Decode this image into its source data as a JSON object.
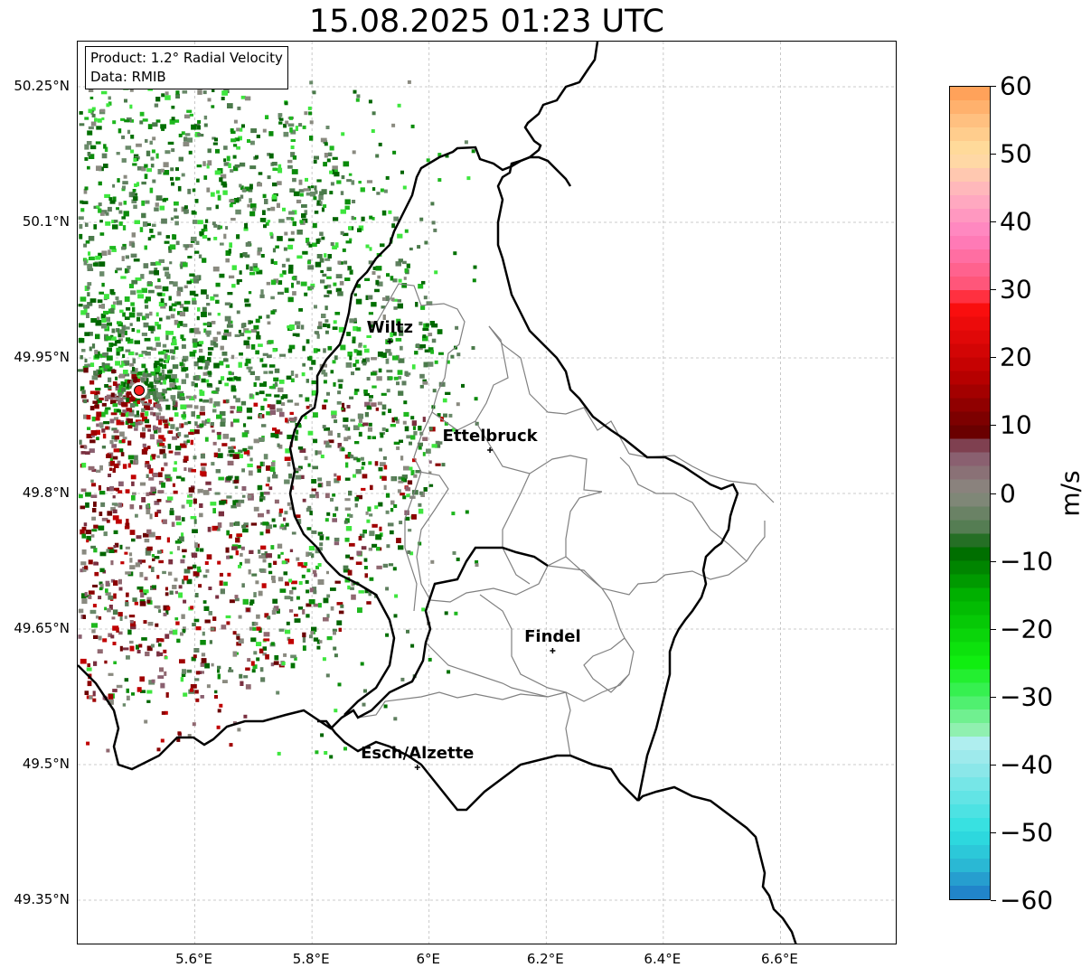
{
  "title": "15.08.2025 01:23 UTC",
  "info": {
    "product": "Product: 1.2° Radial Velocity",
    "data_source": "Data: RMIB"
  },
  "axes": {
    "lat_labels": [
      "50.25°N",
      "50.1°N",
      "49.95°N",
      "49.8°N",
      "49.65°N",
      "49.5°N",
      "49.35°N"
    ],
    "lat_values": [
      50.25,
      50.1,
      49.95,
      49.8,
      49.65,
      49.5,
      49.35
    ],
    "lon_labels": [
      "5.6°E",
      "5.8°E",
      "6°E",
      "6.2°E",
      "6.4°E",
      "6.6°E"
    ],
    "lon_values": [
      5.6,
      5.8,
      6.0,
      6.2,
      6.4,
      6.6
    ],
    "lon_range": [
      5.4,
      6.8
    ],
    "lat_range": [
      49.3,
      50.3
    ],
    "grid": true
  },
  "cities": [
    {
      "name": "Wiltz",
      "lon": 5.933,
      "lat": 49.968
    },
    {
      "name": "Ettelbruck",
      "lon": 6.104,
      "lat": 49.848
    },
    {
      "name": "Findel",
      "lon": 6.211,
      "lat": 49.626
    },
    {
      "name": "Esch/Alzette",
      "lon": 5.98,
      "lat": 49.497
    }
  ],
  "radar_site": {
    "lon": 5.505,
    "lat": 49.914
  },
  "colorbar": {
    "unit": "m/s",
    "min": -60,
    "max": 60,
    "tick_labels": [
      "60",
      "50",
      "40",
      "30",
      "20",
      "10",
      "0",
      "−10",
      "−20",
      "−30",
      "−40",
      "−50",
      "−60"
    ],
    "tick_values": [
      60,
      50,
      40,
      30,
      20,
      10,
      0,
      -10,
      -20,
      -30,
      -40,
      -50,
      -60
    ],
    "stops": [
      {
        "v": -60,
        "c": "#1f78c8"
      },
      {
        "v": -55,
        "c": "#2ab8d4"
      },
      {
        "v": -50,
        "c": "#2ee0e0"
      },
      {
        "v": -40,
        "c": "#95e8ea"
      },
      {
        "v": -36,
        "c": "#b8f0f0"
      },
      {
        "v": -35,
        "c": "#90f0b0"
      },
      {
        "v": -30,
        "c": "#40f060"
      },
      {
        "v": -25,
        "c": "#10ee10"
      },
      {
        "v": -15,
        "c": "#00b000"
      },
      {
        "v": -8,
        "c": "#006400"
      },
      {
        "v": -6,
        "c": "#4a7a4a"
      },
      {
        "v": 0,
        "c": "#8a8a80"
      },
      {
        "v": 5,
        "c": "#8a6070"
      },
      {
        "v": 8,
        "c": "#7a3040"
      },
      {
        "v": 9,
        "c": "#6a0000"
      },
      {
        "v": 18,
        "c": "#c00000"
      },
      {
        "v": 28,
        "c": "#ff1010"
      },
      {
        "v": 30,
        "c": "#ff5070"
      },
      {
        "v": 38,
        "c": "#ff80c0"
      },
      {
        "v": 44,
        "c": "#ffb0c0"
      },
      {
        "v": 50,
        "c": "#ffe0a0"
      },
      {
        "v": 55,
        "c": "#ffc080"
      },
      {
        "v": 60,
        "c": "#ff9a50"
      }
    ]
  },
  "colors": {
    "border": "#000000",
    "canton_lines": "#808080",
    "grid": "#bbbbbb",
    "radar_dot": "#ff2020"
  }
}
